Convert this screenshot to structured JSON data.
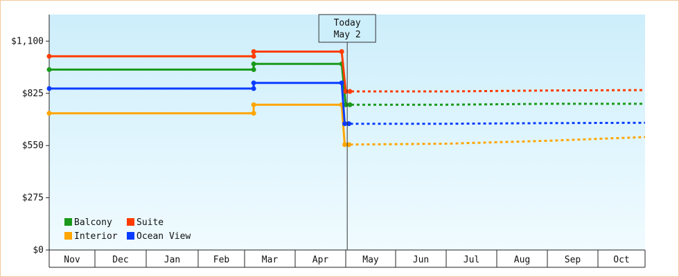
{
  "chart_data": {
    "type": "line",
    "title": "",
    "xlabel": "",
    "ylabel": "",
    "ylim": [
      0,
      1240
    ],
    "yticks": [
      {
        "value": 0,
        "label": "$0"
      },
      {
        "value": 275,
        "label": "$275"
      },
      {
        "value": 550,
        "label": "$550"
      },
      {
        "value": 825,
        "label": "$825"
      },
      {
        "value": 1100,
        "label": "$1,100"
      }
    ],
    "months": [
      "Nov",
      "Dec",
      "Jan",
      "Feb",
      "Mar",
      "Apr",
      "May",
      "Jun",
      "Jul",
      "Aug",
      "Sep",
      "Oct"
    ],
    "today": {
      "line1": "Today",
      "line2": "May 2",
      "x": 6.03
    },
    "legend_position": "bottom-left",
    "series": [
      {
        "name": "Balcony",
        "color": "#1a9a1a",
        "historical": [
          [
            0,
            950
          ],
          [
            4.18,
            950
          ],
          [
            4.18,
            980
          ],
          [
            5.92,
            980
          ],
          [
            6.0,
            765
          ]
        ],
        "forecast": [
          [
            6.0,
            765
          ],
          [
            8,
            765
          ],
          [
            10,
            770
          ],
          [
            12,
            770
          ]
        ]
      },
      {
        "name": "Suite",
        "color": "#ff3b00",
        "historical": [
          [
            0,
            1020
          ],
          [
            4.18,
            1020
          ],
          [
            4.18,
            1045
          ],
          [
            5.92,
            1045
          ],
          [
            6.0,
            835
          ]
        ],
        "forecast": [
          [
            6.0,
            835
          ],
          [
            8,
            835
          ],
          [
            10,
            840
          ],
          [
            12,
            842
          ]
        ]
      },
      {
        "name": "Interior",
        "color": "#ffa600",
        "historical": [
          [
            0,
            720
          ],
          [
            4.18,
            720
          ],
          [
            4.18,
            765
          ],
          [
            5.92,
            765
          ],
          [
            5.98,
            555
          ]
        ],
        "forecast": [
          [
            5.98,
            555
          ],
          [
            8,
            560
          ],
          [
            10,
            575
          ],
          [
            12,
            595
          ]
        ]
      },
      {
        "name": "Ocean View",
        "color": "#0a3cff",
        "historical": [
          [
            0,
            850
          ],
          [
            4.18,
            850
          ],
          [
            4.18,
            880
          ],
          [
            5.92,
            880
          ],
          [
            5.98,
            665
          ]
        ],
        "forecast": [
          [
            5.98,
            665
          ],
          [
            8,
            665
          ],
          [
            10,
            668
          ],
          [
            12,
            670
          ]
        ]
      }
    ]
  }
}
